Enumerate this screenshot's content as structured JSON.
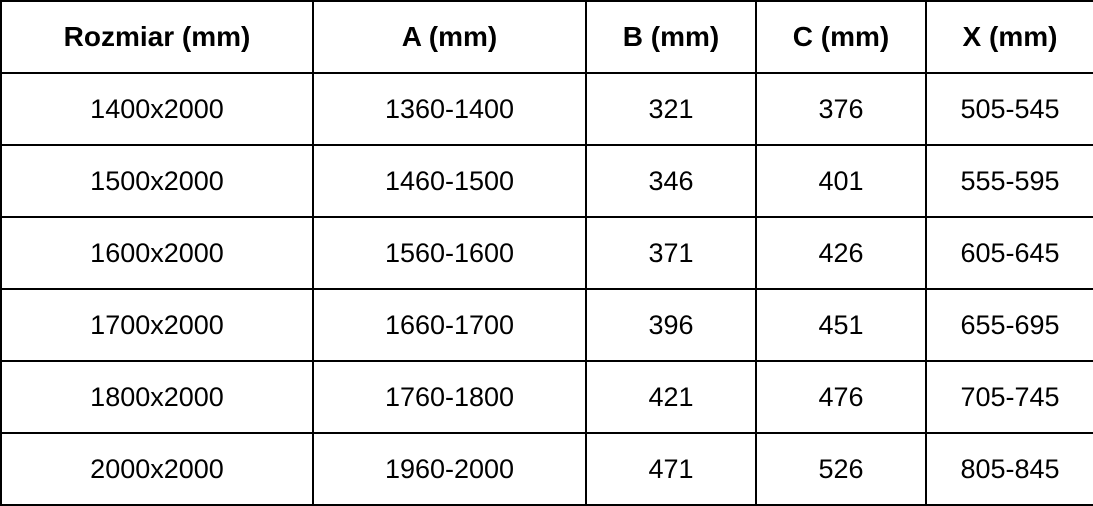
{
  "table": {
    "columns": [
      {
        "label": "Rozmiar (mm)"
      },
      {
        "label": "A (mm)"
      },
      {
        "label": "B (mm)"
      },
      {
        "label": "C (mm)"
      },
      {
        "label": "X (mm)"
      }
    ],
    "rows": [
      {
        "cells": [
          "1400x2000",
          "1360-1400",
          "321",
          "376",
          "505-545"
        ]
      },
      {
        "cells": [
          "1500x2000",
          "1460-1500",
          "346",
          "401",
          "555-595"
        ]
      },
      {
        "cells": [
          "1600x2000",
          "1560-1600",
          "371",
          "426",
          "605-645"
        ]
      },
      {
        "cells": [
          "1700x2000",
          "1660-1700",
          "396",
          "451",
          "655-695"
        ]
      },
      {
        "cells": [
          "1800x2000",
          "1760-1800",
          "421",
          "476",
          "705-745"
        ]
      },
      {
        "cells": [
          "2000x2000",
          "1960-2000",
          "471",
          "526",
          "805-845"
        ]
      }
    ]
  },
  "chart_data": {
    "type": "table",
    "columns": [
      "Rozmiar (mm)",
      "A (mm)",
      "B (mm)",
      "C (mm)",
      "X (mm)"
    ],
    "rows": [
      [
        "1400x2000",
        "1360-1400",
        "321",
        "376",
        "505-545"
      ],
      [
        "1500x2000",
        "1460-1500",
        "346",
        "401",
        "555-595"
      ],
      [
        "1600x2000",
        "1560-1600",
        "371",
        "426",
        "605-645"
      ],
      [
        "1700x2000",
        "1660-1700",
        "396",
        "451",
        "655-695"
      ],
      [
        "1800x2000",
        "1760-1800",
        "421",
        "476",
        "705-745"
      ],
      [
        "2000x2000",
        "1960-2000",
        "471",
        "526",
        "805-845"
      ]
    ]
  },
  "colors": {
    "background": "#ffffff",
    "border": "#000000",
    "text": "#000000"
  }
}
